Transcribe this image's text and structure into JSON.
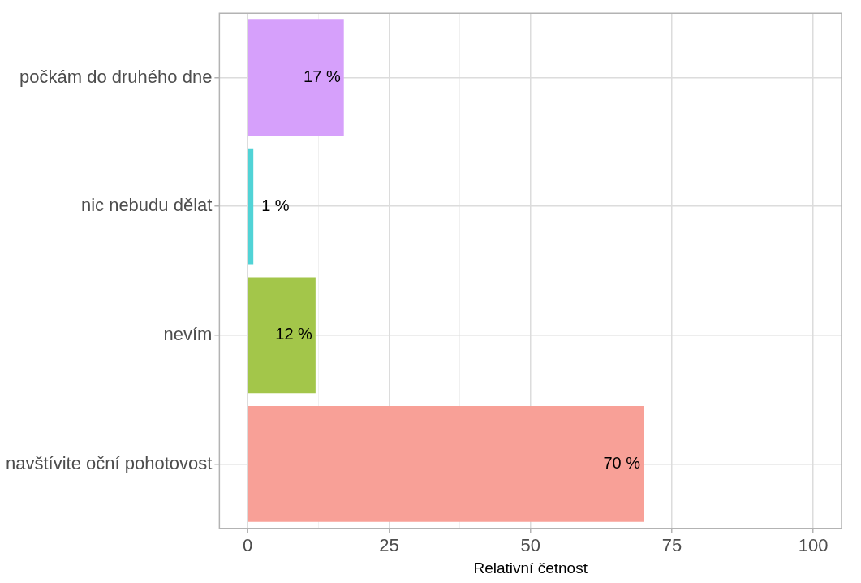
{
  "chart_data": {
    "type": "bar",
    "orientation": "horizontal",
    "xlabel": "Relativní četnost",
    "categories": [
      "počkám do druhého dne",
      "nic nebudu dělat",
      "nevím",
      "navštívite oční pohotovost"
    ],
    "values": [
      17,
      1,
      12,
      70
    ],
    "colors": [
      "#d6a0fb",
      "#51d3d6",
      "#a3c64a",
      "#f8a097"
    ],
    "value_labels": [
      "17 %",
      "1 %",
      "12 %",
      "70 %"
    ],
    "xlim": [
      -5,
      105
    ],
    "xticks": [
      0,
      {
        "value": 12.5,
        "label": null
      },
      25,
      {
        "value": 37.5,
        "label": null
      },
      50,
      {
        "value": 62.5,
        "label": null
      },
      75,
      {
        "value": 87.5,
        "label": null
      },
      100
    ],
    "grid": true,
    "legend": false
  }
}
